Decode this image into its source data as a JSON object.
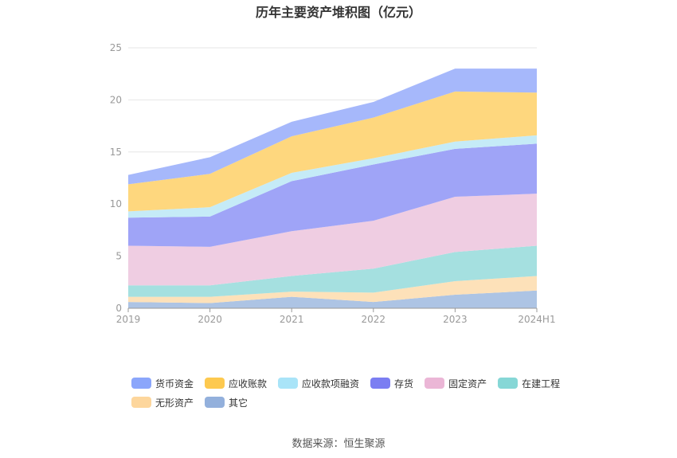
{
  "title": "历年主要资产堆积图（亿元）",
  "source_label": "数据来源：恒生聚源",
  "colors": {
    "货币资金": "#a6b8fb",
    "应收账款": "#fed77e",
    "应收款项融资": "#c5ebf7",
    "存货": "#9fa4f7",
    "固定资产": "#efcde2",
    "在建工程": "#a5e0e0",
    "无形资产": "#fde1b9",
    "其它": "#adc4e4"
  },
  "legend_colors": {
    "货币资金": "#8ba6fb",
    "应收账款": "#fdc94f",
    "应收款项融资": "#a9e4f8",
    "存货": "#7b7ef2",
    "固定资产": "#ebb6d6",
    "在建工程": "#86d7d6",
    "无形资产": "#fdd69c",
    "其它": "#93b0dc"
  },
  "chart_data": {
    "type": "area",
    "stacked": true,
    "title": "历年主要资产堆积图（亿元）",
    "categories": [
      "2019",
      "2020",
      "2021",
      "2022",
      "2023",
      "2024H1"
    ],
    "ylim": [
      0,
      25
    ],
    "yticks": [
      0,
      5,
      10,
      15,
      20,
      25
    ],
    "grid": true,
    "legend_position": "bottom",
    "series": [
      {
        "name": "其它",
        "values": [
          0.6,
          0.5,
          1.1,
          0.6,
          1.3,
          1.7
        ]
      },
      {
        "name": "无形资产",
        "values": [
          0.5,
          0.6,
          0.5,
          0.9,
          1.3,
          1.4
        ]
      },
      {
        "name": "在建工程",
        "values": [
          1.1,
          1.1,
          1.5,
          2.3,
          2.8,
          2.9
        ]
      },
      {
        "name": "固定资产",
        "values": [
          3.8,
          3.7,
          4.3,
          4.6,
          5.3,
          5.0
        ]
      },
      {
        "name": "存货",
        "values": [
          2.7,
          2.9,
          4.8,
          5.4,
          4.6,
          4.8
        ]
      },
      {
        "name": "应收款项融资",
        "values": [
          0.6,
          0.9,
          0.8,
          0.6,
          0.7,
          0.8
        ]
      },
      {
        "name": "应收账款",
        "values": [
          2.6,
          3.2,
          3.5,
          3.9,
          4.8,
          4.1
        ]
      },
      {
        "name": "货币资金",
        "values": [
          0.9,
          1.6,
          1.4,
          1.5,
          2.2,
          2.3
        ]
      }
    ]
  },
  "legend": [
    "货币资金",
    "应收账款",
    "应收款项融资",
    "存货",
    "固定资产",
    "在建工程",
    "无形资产",
    "其它"
  ]
}
